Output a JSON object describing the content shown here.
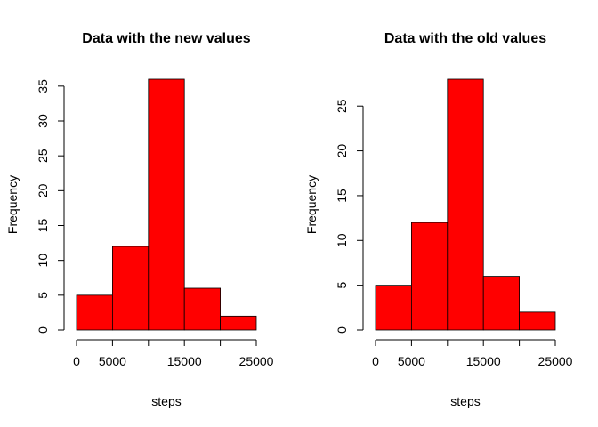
{
  "chart_data": [
    {
      "type": "bar",
      "title": "Data with the new values",
      "xlabel": "steps",
      "ylabel": "Frequency",
      "bins": [
        [
          0,
          5000
        ],
        [
          5000,
          10000
        ],
        [
          10000,
          15000
        ],
        [
          15000,
          20000
        ],
        [
          20000,
          25000
        ]
      ],
      "values": [
        5,
        12,
        36,
        6,
        2
      ],
      "xticks": [
        0,
        5000,
        15000,
        25000
      ],
      "yticks": [
        0,
        5,
        10,
        15,
        20,
        25,
        30,
        35
      ],
      "xlim": [
        0,
        25000
      ],
      "ylim": [
        0,
        36
      ],
      "grid": false,
      "color": "#ff0000"
    },
    {
      "type": "bar",
      "title": "Data with the old values",
      "xlabel": "steps",
      "ylabel": "Frequency",
      "bins": [
        [
          0,
          5000
        ],
        [
          5000,
          10000
        ],
        [
          10000,
          15000
        ],
        [
          15000,
          20000
        ],
        [
          20000,
          25000
        ]
      ],
      "values": [
        5,
        12,
        28,
        6,
        2
      ],
      "xticks": [
        0,
        5000,
        15000,
        25000
      ],
      "yticks": [
        0,
        5,
        10,
        15,
        20,
        25
      ],
      "xlim": [
        0,
        25000
      ],
      "ylim": [
        0,
        28
      ],
      "grid": false,
      "color": "#ff0000"
    }
  ]
}
